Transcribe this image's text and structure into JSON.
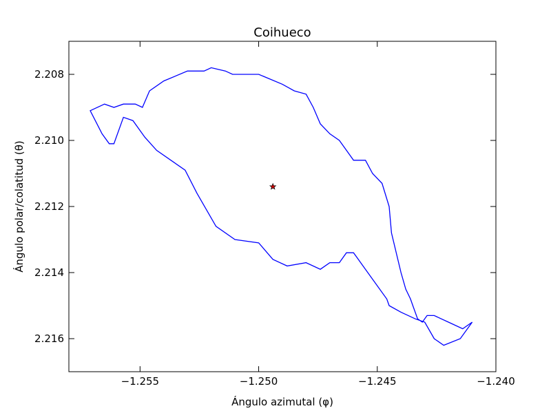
{
  "chart_data": {
    "type": "line",
    "title": "Coihueco",
    "xlabel": "Ángulo azimutal (φ)",
    "ylabel": "Ángulo polar/colatitud (θ)",
    "xlim": [
      -1.258,
      -1.24
    ],
    "ylim": [
      2.207,
      2.217
    ],
    "y_inverted": true,
    "grid": false,
    "xticks": [
      -1.255,
      -1.25,
      -1.245,
      -1.24
    ],
    "xtick_labels": [
      "−1.255",
      "−1.250",
      "−1.245",
      "−1.240"
    ],
    "yticks": [
      2.208,
      2.21,
      2.212,
      2.214,
      2.216
    ],
    "ytick_labels": [
      "2.208",
      "2.210",
      "2.212",
      "2.214",
      "2.216"
    ],
    "series": [
      {
        "line_color": "#0000ff",
        "x": [
          -1.2571,
          -1.2565,
          -1.2561,
          -1.2557,
          -1.2552,
          -1.2549,
          -1.2546,
          -1.254,
          -1.253,
          -1.2523,
          -1.252,
          -1.2514,
          -1.2511,
          -1.2507,
          -1.25,
          -1.249,
          -1.2485,
          -1.248,
          -1.2477,
          -1.2474,
          -1.247,
          -1.2466,
          -1.246,
          -1.2458,
          -1.2455,
          -1.2452,
          -1.2448,
          -1.2445,
          -1.2444,
          -1.244,
          -1.2438,
          -1.2436,
          -1.2435,
          -1.2433,
          -1.2431,
          -1.2429,
          -1.2426,
          -1.242,
          -1.2414,
          -1.241,
          -1.2415,
          -1.2422,
          -1.2426,
          -1.243,
          -1.2434,
          -1.244,
          -1.2445,
          -1.2446,
          -1.2452,
          -1.2458,
          -1.246,
          -1.2463,
          -1.2466,
          -1.247,
          -1.2474,
          -1.248,
          -1.2488,
          -1.2494,
          -1.25,
          -1.251,
          -1.2518,
          -1.2522,
          -1.2526,
          -1.2531,
          -1.2537,
          -1.2543,
          -1.2548,
          -1.2553,
          -1.2557,
          -1.2561,
          -1.2563,
          -1.2566,
          -1.2571
        ],
        "y": [
          2.2091,
          2.2089,
          2.209,
          2.2089,
          2.2089,
          2.209,
          2.2085,
          2.2082,
          2.2079,
          2.2079,
          2.2078,
          2.2079,
          2.208,
          2.208,
          2.208,
          2.2083,
          2.2085,
          2.2086,
          2.209,
          2.2095,
          2.2098,
          2.21,
          2.2106,
          2.2106,
          2.2106,
          2.211,
          2.2113,
          2.212,
          2.2128,
          2.214,
          2.2145,
          2.2148,
          2.215,
          2.2154,
          2.2155,
          2.2153,
          2.2153,
          2.2155,
          2.2157,
          2.2155,
          2.216,
          2.2162,
          2.216,
          2.2155,
          2.2154,
          2.2152,
          2.215,
          2.2148,
          2.2142,
          2.2136,
          2.2134,
          2.2134,
          2.2137,
          2.2137,
          2.2139,
          2.2137,
          2.2138,
          2.2136,
          2.2131,
          2.213,
          2.2126,
          2.2121,
          2.2116,
          2.2109,
          2.2106,
          2.2103,
          2.2099,
          2.2094,
          2.2093,
          2.2101,
          2.2101,
          2.2098,
          2.2091
        ]
      }
    ],
    "marker": {
      "x": -1.2494,
      "y": 2.2114,
      "shape": "star",
      "fill": "#cc0000"
    }
  }
}
